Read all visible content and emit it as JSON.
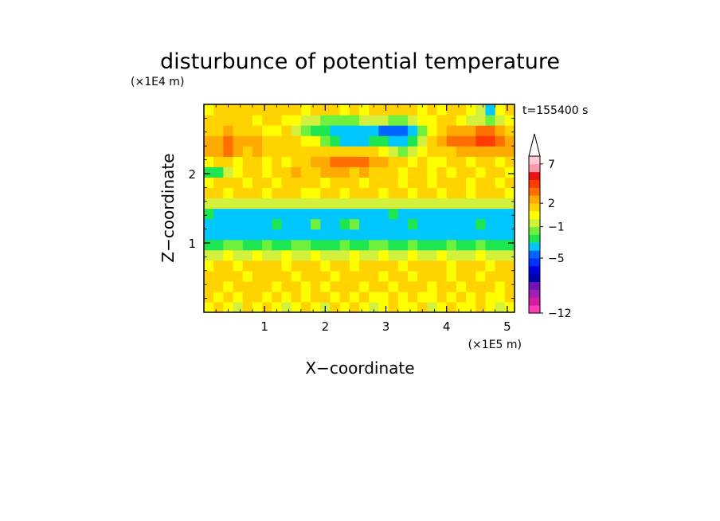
{
  "chart_data": {
    "type": "heatmap",
    "title": "disturbunce of potential temperature",
    "xlabel": "X−coordinate",
    "ylabel": "Z−coordinate",
    "x_unit": "(×1E5 m)",
    "y_unit": "(×1E4 m)",
    "time_label": "t=155400 s",
    "xlim": [
      0,
      5.12
    ],
    "ylim": [
      0,
      3.0
    ],
    "x_ticks": [
      1,
      2,
      3,
      4,
      5
    ],
    "y_ticks": [
      1,
      2
    ],
    "x_tick_labels": [
      "1",
      "2",
      "3",
      "4",
      "5"
    ],
    "y_tick_labels": [
      "1",
      "2"
    ],
    "colorbar": {
      "levels": [
        -12,
        -11,
        -10,
        -9,
        -8,
        -7,
        -6,
        -5,
        -4,
        -3,
        -2,
        -1,
        0,
        1,
        2,
        3,
        4,
        5,
        6,
        7,
        8,
        9,
        10
      ],
      "labels": [
        {
          "value": 7,
          "text": "7"
        },
        {
          "value": 2,
          "text": "2"
        },
        {
          "value": -1,
          "text": "−1"
        },
        {
          "value": -5,
          "text": "−5"
        },
        {
          "value": -12,
          "text": "−12"
        }
      ],
      "colors": [
        "#ff3cb4",
        "#d21ea0",
        "#a01eb4",
        "#6e14b4",
        "#0000aa",
        "#0000dc",
        "#0032ff",
        "#0064ff",
        "#00c8ff",
        "#1ee650",
        "#6ef03c",
        "#d2f03c",
        "#ffff00",
        "#ffd200",
        "#ffaa00",
        "#ff6e00",
        "#ff3c00",
        "#e61414",
        "#ff96aa",
        "#ffc8d2"
      ],
      "extend": "max"
    },
    "field": {
      "x": [
        0.0,
        0.16,
        0.32,
        0.48,
        0.64,
        0.8,
        0.96,
        1.12,
        1.28,
        1.44,
        1.6,
        1.76,
        1.92,
        2.08,
        2.24,
        2.4,
        2.56,
        2.72,
        2.88,
        3.04,
        3.2,
        3.36,
        3.52,
        3.68,
        3.84,
        4.0,
        4.16,
        4.32,
        4.48,
        4.64,
        4.8,
        4.96
      ],
      "z": [
        0.0,
        0.15,
        0.3,
        0.45,
        0.6,
        0.75,
        0.9,
        1.05,
        1.2,
        1.35,
        1.5,
        1.65,
        1.8,
        1.95,
        2.1,
        2.25,
        2.4,
        2.55,
        2.7,
        2.85
      ],
      "values": [
        [
          0,
          1,
          0,
          -1,
          1,
          0,
          1,
          0,
          -1,
          0,
          1,
          0,
          -1,
          1,
          0,
          1,
          0,
          -1,
          0,
          1,
          0,
          0,
          1,
          -1,
          0,
          1,
          0,
          0,
          1,
          0,
          -1,
          0
        ],
        [
          1,
          0,
          1,
          0,
          1,
          1,
          0,
          1,
          0,
          1,
          0,
          1,
          1,
          0,
          1,
          0,
          1,
          0,
          0,
          1,
          0,
          1,
          0,
          0,
          1,
          0,
          1,
          0,
          1,
          0,
          0,
          1
        ],
        [
          1,
          1,
          0,
          1,
          1,
          1,
          1,
          0,
          1,
          1,
          0,
          1,
          0,
          1,
          1,
          1,
          0,
          1,
          1,
          0,
          1,
          1,
          1,
          0,
          1,
          1,
          0,
          1,
          1,
          1,
          0,
          1
        ],
        [
          1,
          1,
          1,
          1,
          0,
          1,
          1,
          1,
          1,
          0,
          1,
          1,
          1,
          0,
          1,
          1,
          1,
          1,
          0,
          1,
          1,
          0,
          1,
          1,
          1,
          0,
          1,
          1,
          0,
          1,
          1,
          1
        ],
        [
          0,
          1,
          1,
          0,
          1,
          1,
          1,
          1,
          0,
          1,
          1,
          1,
          0,
          1,
          1,
          0,
          1,
          1,
          1,
          1,
          0,
          1,
          1,
          1,
          1,
          0,
          1,
          1,
          1,
          0,
          1,
          1
        ],
        [
          -1,
          -1,
          0,
          -1,
          -1,
          0,
          -1,
          -1,
          0,
          -1,
          -1,
          0,
          -1,
          -1,
          -1,
          0,
          -1,
          -1,
          0,
          -1,
          -1,
          0,
          -1,
          -1,
          0,
          -1,
          -1,
          -1,
          0,
          -1,
          -1,
          -1
        ],
        [
          -3,
          -3,
          -2,
          -2,
          -3,
          -3,
          -2,
          -3,
          -3,
          -2,
          -2,
          -3,
          -3,
          -3,
          -2,
          -3,
          -3,
          -2,
          -2,
          -3,
          -3,
          -2,
          -3,
          -3,
          -3,
          -2,
          -3,
          -3,
          -2,
          -3,
          -3,
          -3
        ],
        [
          -4,
          -4,
          -4,
          -4,
          -4,
          -4,
          -4,
          -4,
          -4,
          -4,
          -4,
          -4,
          -4,
          -4,
          -4,
          -4,
          -4,
          -4,
          -4,
          -4,
          -4,
          -4,
          -4,
          -4,
          -4,
          -4,
          -4,
          -4,
          -4,
          -4,
          -4,
          -4
        ],
        [
          -4,
          -4,
          -4,
          -4,
          -4,
          -4,
          -4,
          -3,
          -4,
          -4,
          -4,
          -2,
          -4,
          -4,
          -3,
          -2,
          -4,
          -4,
          -4,
          -4,
          -4,
          -3,
          -4,
          -4,
          -4,
          -4,
          -4,
          -4,
          -3,
          -4,
          -4,
          -4
        ],
        [
          -3,
          -4,
          -4,
          -4,
          -4,
          -4,
          -4,
          -4,
          -4,
          -4,
          -4,
          -4,
          -4,
          -4,
          -4,
          -4,
          -4,
          -4,
          -4,
          -3,
          -4,
          -4,
          -4,
          -4,
          -4,
          -4,
          -4,
          -4,
          -4,
          -4,
          -4,
          -4
        ],
        [
          -1,
          -1,
          -1,
          -1,
          -1,
          -1,
          -1,
          -1,
          -1,
          -1,
          -1,
          -1,
          -1,
          -1,
          -1,
          -1,
          -1,
          -1,
          -1,
          -1,
          -1,
          -1,
          -1,
          -1,
          -1,
          -1,
          -1,
          -1,
          -1,
          -1,
          -1,
          -1
        ],
        [
          1,
          1,
          0,
          1,
          1,
          1,
          0,
          1,
          1,
          1,
          0,
          0,
          1,
          1,
          0,
          1,
          1,
          1,
          0,
          1,
          1,
          0,
          1,
          1,
          0,
          1,
          1,
          0,
          1,
          1,
          1,
          0
        ],
        [
          0,
          1,
          1,
          1,
          0,
          1,
          1,
          0,
          1,
          1,
          1,
          1,
          0,
          1,
          1,
          1,
          0,
          1,
          1,
          1,
          0,
          1,
          1,
          0,
          1,
          1,
          1,
          0,
          1,
          1,
          0,
          1
        ],
        [
          -3,
          -3,
          -1,
          0,
          1,
          1,
          0,
          1,
          1,
          2,
          1,
          1,
          2,
          2,
          2,
          1,
          2,
          1,
          1,
          1,
          0,
          1,
          1,
          0,
          1,
          0,
          1,
          1,
          0,
          1,
          1,
          0
        ],
        [
          0,
          1,
          1,
          0,
          1,
          1,
          0,
          1,
          0,
          1,
          1,
          2,
          2,
          3,
          3,
          3,
          3,
          2,
          2,
          1,
          1,
          0,
          1,
          0,
          0,
          1,
          1,
          0,
          1,
          1,
          0,
          1
        ],
        [
          2,
          2,
          3,
          2,
          1,
          2,
          1,
          1,
          1,
          1,
          1,
          1,
          1,
          1,
          1,
          1,
          1,
          1,
          0,
          -1,
          -2,
          -1,
          0,
          1,
          1,
          1,
          2,
          2,
          2,
          2,
          2,
          2
        ],
        [
          2,
          2,
          3,
          2,
          2,
          2,
          1,
          1,
          1,
          1,
          0,
          0,
          -2,
          -3,
          -4,
          -4,
          -4,
          -3,
          -3,
          -4,
          -4,
          -3,
          -1,
          1,
          2,
          3,
          3,
          3,
          4,
          4,
          3,
          2
        ],
        [
          1,
          1,
          2,
          1,
          1,
          1,
          0,
          0,
          1,
          -1,
          -2,
          -3,
          -3,
          -4,
          -4,
          -4,
          -4,
          -4,
          -5,
          -5,
          -5,
          -4,
          -2,
          0,
          1,
          2,
          2,
          2,
          3,
          3,
          2,
          1
        ],
        [
          1,
          1,
          1,
          1,
          1,
          0,
          1,
          1,
          0,
          0,
          -1,
          -1,
          -2,
          -2,
          -2,
          -2,
          -1,
          -1,
          -1,
          -2,
          -2,
          -1,
          0,
          0,
          1,
          1,
          0,
          -1,
          -1,
          -2,
          -1,
          0
        ],
        [
          0,
          1,
          1,
          1,
          1,
          1,
          1,
          1,
          1,
          1,
          0,
          1,
          1,
          1,
          0,
          1,
          0,
          1,
          1,
          1,
          1,
          1,
          0,
          1,
          0,
          1,
          1,
          0,
          -1,
          -4,
          0,
          1
        ]
      ]
    }
  }
}
